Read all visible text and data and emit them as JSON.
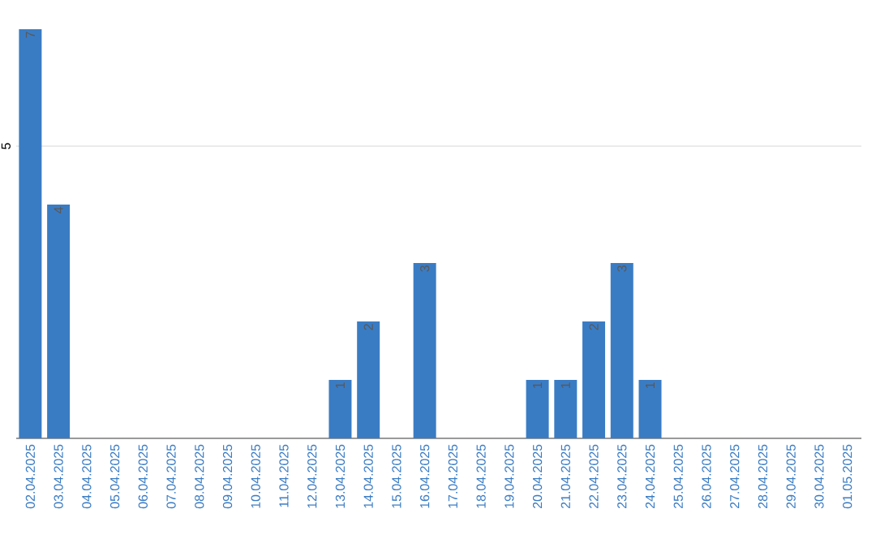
{
  "chart_data": {
    "type": "bar",
    "categories": [
      "02.04.2025",
      "03.04.2025",
      "04.04.2025",
      "05.04.2025",
      "06.04.2025",
      "07.04.2025",
      "08.04.2025",
      "09.04.2025",
      "10.04.2025",
      "11.04.2025",
      "12.04.2025",
      "13.04.2025",
      "14.04.2025",
      "15.04.2025",
      "16.04.2025",
      "17.04.2025",
      "18.04.2025",
      "19.04.2025",
      "20.04.2025",
      "21.04.2025",
      "22.04.2025",
      "23.04.2025",
      "24.04.2025",
      "25.04.2025",
      "26.04.2025",
      "27.04.2025",
      "28.04.2025",
      "29.04.2025",
      "30.04.2025",
      "01.05.2025"
    ],
    "values": [
      7,
      4,
      0,
      0,
      0,
      0,
      0,
      0,
      0,
      0,
      0,
      1,
      2,
      0,
      3,
      0,
      0,
      0,
      1,
      1,
      2,
      3,
      1,
      0,
      0,
      0,
      0,
      0,
      0,
      0
    ],
    "value_labels": [
      "7",
      "4",
      null,
      null,
      null,
      null,
      null,
      null,
      null,
      null,
      null,
      "1",
      "2",
      null,
      "3",
      null,
      null,
      null,
      "1",
      "1",
      "2",
      "3",
      "1",
      null,
      null,
      null,
      null,
      null,
      null,
      null
    ],
    "color": "#3a7cc4",
    "ylim": [
      0,
      7
    ],
    "yticks": [
      5
    ],
    "grid": "y"
  }
}
